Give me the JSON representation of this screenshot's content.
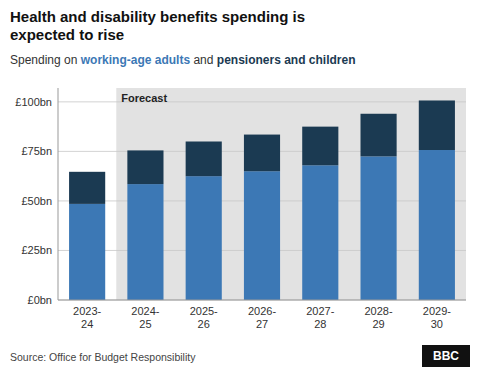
{
  "chart_data": {
    "type": "bar",
    "stacked": true,
    "title": "Health and disability benefits spending is\nexpected to rise",
    "subtitle": "Spending on working-age adults and pensioners and children",
    "categories": [
      "2023-\n24",
      "2024-\n25",
      "2025-\n26",
      "2026-\n27",
      "2027-\n28",
      "2028-\n29",
      "2029-\n30"
    ],
    "series": [
      {
        "name": "working-age adults",
        "color": "#3c78b5",
        "values": [
          48.5,
          58.5,
          62.5,
          65.0,
          68.0,
          72.5,
          75.7
        ]
      },
      {
        "name": "pensioners and children",
        "color": "#1b3a52",
        "values": [
          16.2,
          17.0,
          17.5,
          18.5,
          19.5,
          21.5,
          25.0
        ]
      }
    ],
    "ylim": [
      0,
      107
    ],
    "yticks": [
      {
        "value": 0,
        "label": "£0bn"
      },
      {
        "value": 25,
        "label": "£25bn"
      },
      {
        "value": 50,
        "label": "£50bn"
      },
      {
        "value": 75,
        "label": "£75bn"
      },
      {
        "value": 100,
        "label": "£100bn"
      }
    ],
    "grid": true,
    "annotations": [
      {
        "text": "Forecast",
        "x": "2024-\n25",
        "color": "#e2e2e2"
      }
    ],
    "source": "Source: Office for Budget Responsibility",
    "credit": "BBC"
  }
}
